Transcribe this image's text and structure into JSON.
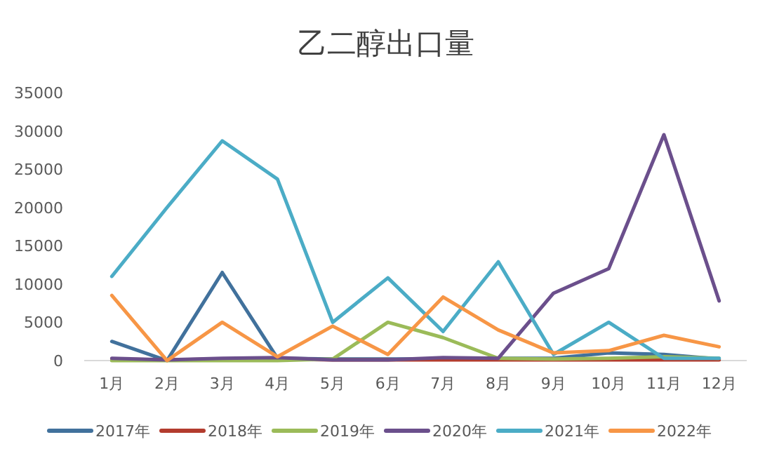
{
  "chart_data": {
    "type": "line",
    "title": "乙二醇出口量",
    "categories": [
      "1月",
      "2月",
      "3月",
      "4月",
      "5月",
      "6月",
      "7月",
      "8月",
      "9月",
      "10月",
      "11月",
      "12月"
    ],
    "ylim": [
      0,
      35000
    ],
    "yticks": [
      0,
      5000,
      10000,
      15000,
      20000,
      25000,
      30000,
      35000
    ],
    "legend": "bottom",
    "series": [
      {
        "name": "2017年",
        "color": "#41719c",
        "values": [
          2500,
          0,
          11500,
          300,
          200,
          200,
          200,
          300,
          300,
          1000,
          800,
          200
        ]
      },
      {
        "name": "2018年",
        "color": "#b33c2e",
        "values": [
          200,
          100,
          200,
          200,
          100,
          100,
          100,
          100,
          100,
          100,
          100,
          100
        ]
      },
      {
        "name": "2019年",
        "color": "#9bbb59",
        "values": [
          0,
          0,
          0,
          0,
          200,
          5000,
          3000,
          300,
          200,
          300,
          500,
          300
        ]
      },
      {
        "name": "2020年",
        "color": "#6b4f8c",
        "values": [
          300,
          100,
          300,
          400,
          100,
          100,
          400,
          300,
          8800,
          12000,
          29500,
          7800
        ]
      },
      {
        "name": "2021年",
        "color": "#4bacc6",
        "values": [
          11000,
          20000,
          28700,
          23700,
          5000,
          10800,
          3800,
          12900,
          800,
          5000,
          300,
          300
        ]
      },
      {
        "name": "2022年",
        "color": "#f79646",
        "values": [
          8500,
          0,
          5000,
          500,
          4500,
          800,
          8300,
          4000,
          1000,
          1300,
          3300,
          1800
        ]
      }
    ]
  }
}
